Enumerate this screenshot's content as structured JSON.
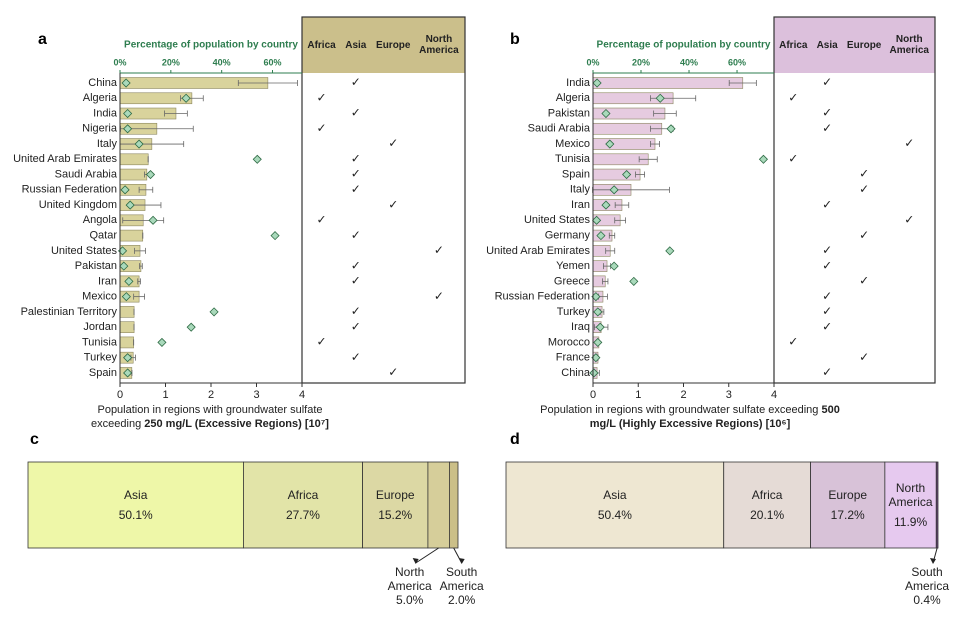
{
  "chart_data": [
    {
      "type": "bar",
      "panel": "a",
      "categories": [
        "China",
        "Algeria",
        "India",
        "Nigeria",
        "Italy",
        "United Arab Emirates",
        "Saudi Arabia",
        "Russian Federation",
        "United Kingdom",
        "Angola",
        "Qatar",
        "United States",
        "Pakistan",
        "Iran",
        "Mexico",
        "Palestinian Territory",
        "Jordan",
        "Tunisia",
        "Turkey",
        "Spain"
      ],
      "values": [
        3.25,
        1.58,
        1.23,
        0.81,
        0.7,
        0.62,
        0.59,
        0.57,
        0.55,
        0.51,
        0.5,
        0.44,
        0.46,
        0.42,
        0.42,
        0.31,
        0.31,
        0.3,
        0.29,
        0.26
      ],
      "errors": [
        0.65,
        0.25,
        0.25,
        0.8,
        0.7,
        0,
        0.05,
        0.15,
        0.35,
        0.45,
        0,
        0.12,
        0.03,
        0.03,
        0.12,
        0,
        0,
        0,
        0.05,
        0
      ],
      "percent_values": [
        2.4,
        26,
        3,
        3,
        7.5,
        54,
        12,
        2,
        4,
        13,
        61,
        1,
        1.5,
        3.5,
        2.5,
        37,
        28,
        16.5,
        3,
        3
      ],
      "regions": [
        1,
        0,
        1,
        0,
        2,
        1,
        1,
        1,
        2,
        0,
        1,
        3,
        1,
        1,
        3,
        1,
        1,
        0,
        1,
        2
      ],
      "region_headers": [
        "Africa",
        "Asia",
        "Europe",
        "North America"
      ],
      "check_mark": "✓",
      "xlim": [
        0,
        4
      ],
      "xticks": [
        0,
        1,
        2,
        3,
        4
      ],
      "x2lim": [
        0,
        71.6
      ],
      "x2ticks": [
        {
          "value": 0,
          "label": "0%"
        },
        {
          "value": 20,
          "label": "20%"
        },
        {
          "value": 40,
          "label": "40%"
        },
        {
          "value": 60,
          "label": "60%"
        }
      ],
      "x2label": "Percentage of population by country",
      "xlabel": "Population in regions with groundwater sulfate exceeding",
      "xlabel_bold": "250 mg/L (Excessive Regions) [10⁷]",
      "bar_color": "#d9d39c",
      "marker_color": "#a9d9bb",
      "header_color": "#cbbf8b"
    },
    {
      "type": "bar",
      "panel": "b",
      "categories": [
        "India",
        "Algeria",
        "Pakistan",
        "Saudi Arabia",
        "Mexico",
        "Tunisia",
        "Spain",
        "Italy",
        "Iran",
        "United States",
        "Germany",
        "United Arab Emirates",
        "Yemen",
        "Greece",
        "Russian Federation",
        "Turkey",
        "Iraq",
        "Morocco",
        "France",
        "China"
      ],
      "values": [
        3.31,
        1.77,
        1.59,
        1.52,
        1.37,
        1.22,
        1.04,
        0.84,
        0.64,
        0.6,
        0.42,
        0.38,
        0.31,
        0.27,
        0.22,
        0.2,
        0.18,
        0.13,
        0.11,
        0.09
      ],
      "errors": [
        0.3,
        0.5,
        0.25,
        0.25,
        0.1,
        0.2,
        0.1,
        0.85,
        0.15,
        0.12,
        0.06,
        0.1,
        0.08,
        0.06,
        0.1,
        0.04,
        0.15,
        0,
        0,
        0.05
      ],
      "percent_values": [
        1.7,
        28,
        5.4,
        32.5,
        7,
        71,
        14,
        8.8,
        5.4,
        1.5,
        3.3,
        32,
        8.8,
        17,
        1.2,
        2,
        3,
        2,
        1.2,
        0.4
      ],
      "regions": [
        1,
        0,
        1,
        1,
        3,
        0,
        2,
        2,
        1,
        3,
        2,
        1,
        1,
        2,
        1,
        1,
        1,
        0,
        2,
        1
      ],
      "region_headers": [
        "Africa",
        "Asia",
        "Europe",
        "North America"
      ],
      "check_mark": "✓",
      "xlim": [
        0,
        4
      ],
      "xticks": [
        0,
        1,
        2,
        3,
        4
      ],
      "x2lim": [
        0,
        75.4
      ],
      "x2ticks": [
        {
          "value": 0,
          "label": "0%"
        },
        {
          "value": 20,
          "label": "20%"
        },
        {
          "value": 40,
          "label": "40%"
        },
        {
          "value": 60,
          "label": "60%"
        }
      ],
      "x2label": "Percentage of population by country",
      "xlabel": "Population in regions with groundwater sulfate exceeding",
      "xlabel_bold": "500 mg/L (Highly Excessive Regions) [10⁶]",
      "bar_color": "#e6cbe0",
      "marker_color": "#a9d9bb",
      "header_color": "#dcc0dc"
    },
    {
      "type": "stacked_bar",
      "panel": "c",
      "categories": [
        "Asia",
        "Africa",
        "Europe",
        "North America",
        "South America"
      ],
      "values": [
        50.1,
        27.7,
        15.2,
        5.0,
        2.0
      ],
      "value_labels": [
        "50.1%",
        "27.7%",
        "15.2%",
        "5.0%",
        "2.0%"
      ],
      "colors": [
        "#eef7a8",
        "#e2e4a8",
        "#dcd8a4",
        "#d6ce9a",
        "#cbbf88"
      ]
    },
    {
      "type": "stacked_bar",
      "panel": "d",
      "categories": [
        "Asia",
        "Africa",
        "Europe",
        "North America",
        "South America"
      ],
      "values": [
        50.4,
        20.1,
        17.2,
        11.9,
        0.4
      ],
      "value_labels": [
        "50.4%",
        "20.1%",
        "17.2%",
        "11.9%",
        "0.4%"
      ],
      "colors": [
        "#eee7d2",
        "#e5dbd6",
        "#d8c2d8",
        "#e6c9ef",
        "#6a4a7a"
      ]
    }
  ]
}
